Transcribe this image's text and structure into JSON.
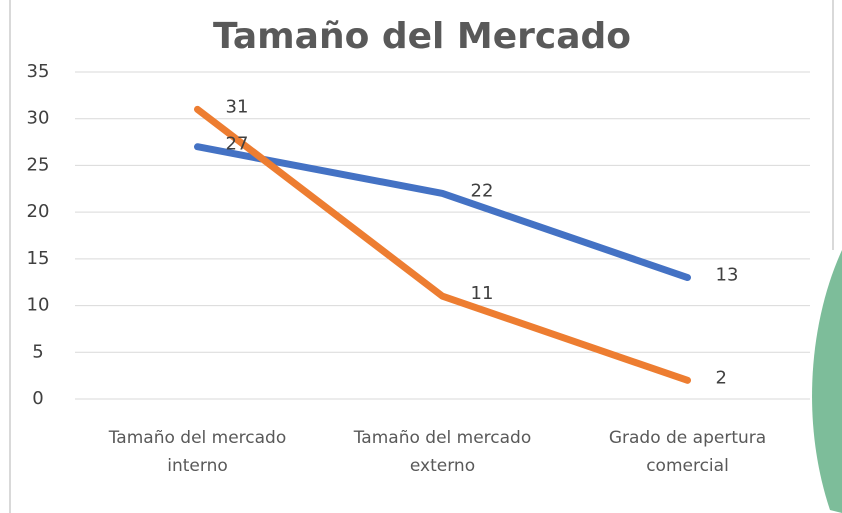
{
  "chart_data": {
    "type": "line",
    "title": "Tamaño  del Mercado",
    "categories": [
      "Tamaño del mercado interno",
      "Tamaño del mercado externo",
      "Grado de apertura comercial"
    ],
    "series": [
      {
        "color": "#4472c4",
        "values": [
          27,
          22,
          13
        ]
      },
      {
        "color": "#ed7d31",
        "values": [
          31,
          11,
          2
        ]
      }
    ],
    "ylim": [
      0,
      35
    ],
    "yticks": [
      0,
      5,
      10,
      15,
      20,
      25,
      30,
      35
    ],
    "grid": true
  }
}
